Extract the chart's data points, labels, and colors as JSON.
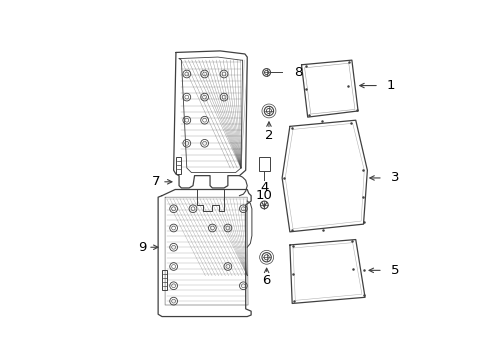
{
  "bg_color": "#ffffff",
  "line_color": "#404040",
  "lw": 0.9
}
